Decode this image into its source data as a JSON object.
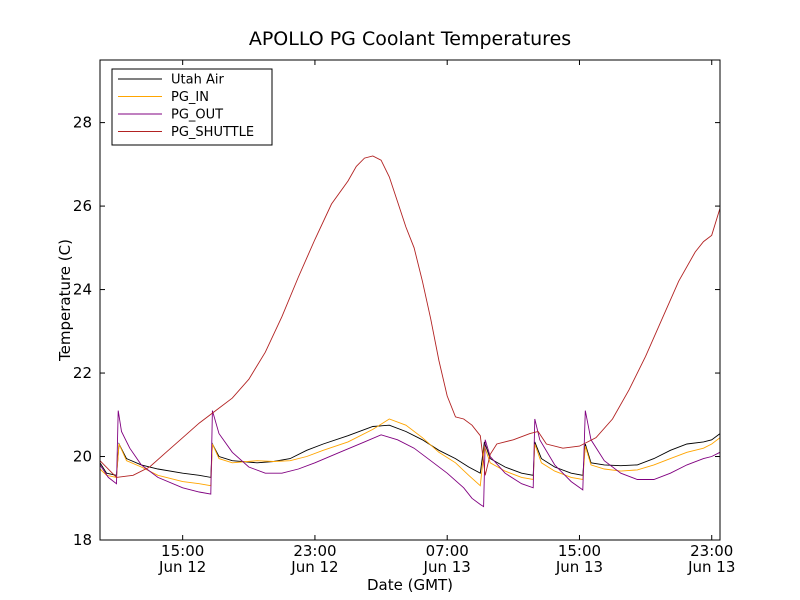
{
  "chart_data": {
    "type": "line",
    "title": "APOLLO PG Coolant Temperatures",
    "xlabel": "Date (GMT)",
    "ylabel": "Temperature (C)",
    "x_unit": "hours since Jun 12 00:00 GMT",
    "xlim": [
      10.0,
      47.5
    ],
    "ylim": [
      18,
      29.5
    ],
    "y_ticks": [
      18,
      20,
      22,
      24,
      26,
      28
    ],
    "x_ticks": [
      {
        "x": 15,
        "time": "15:00",
        "date": "Jun 12"
      },
      {
        "x": 23,
        "time": "23:00",
        "date": "Jun 12"
      },
      {
        "x": 31,
        "time": "07:00",
        "date": "Jun 13"
      },
      {
        "x": 39,
        "time": "15:00",
        "date": "Jun 13"
      },
      {
        "x": 47,
        "time": "23:00",
        "date": "Jun 13"
      }
    ],
    "legend_position": "top-left",
    "series": [
      {
        "name": "Utah Air",
        "color": "#000000",
        "points": [
          [
            10.0,
            19.85
          ],
          [
            10.4,
            19.6
          ],
          [
            11.0,
            19.55
          ],
          [
            11.15,
            20.3
          ],
          [
            11.6,
            19.95
          ],
          [
            12.5,
            19.8
          ],
          [
            13.5,
            19.7
          ],
          [
            15.0,
            19.6
          ],
          [
            16.0,
            19.55
          ],
          [
            16.7,
            19.5
          ],
          [
            16.8,
            20.3
          ],
          [
            17.2,
            20.0
          ],
          [
            18.0,
            19.9
          ],
          [
            19.5,
            19.85
          ],
          [
            20.5,
            19.88
          ],
          [
            21.5,
            19.95
          ],
          [
            22.5,
            20.15
          ],
          [
            23.5,
            20.3
          ],
          [
            25.0,
            20.5
          ],
          [
            26.5,
            20.72
          ],
          [
            27.5,
            20.75
          ],
          [
            28.5,
            20.6
          ],
          [
            29.5,
            20.4
          ],
          [
            30.5,
            20.15
          ],
          [
            31.5,
            19.95
          ],
          [
            32.3,
            19.75
          ],
          [
            33.0,
            19.6
          ],
          [
            33.25,
            20.35
          ],
          [
            33.6,
            19.95
          ],
          [
            34.5,
            19.75
          ],
          [
            35.5,
            19.6
          ],
          [
            36.2,
            19.55
          ],
          [
            36.3,
            20.35
          ],
          [
            36.7,
            19.95
          ],
          [
            37.5,
            19.75
          ],
          [
            38.5,
            19.6
          ],
          [
            39.2,
            19.55
          ],
          [
            39.35,
            20.3
          ],
          [
            39.7,
            19.85
          ],
          [
            40.5,
            19.8
          ],
          [
            41.5,
            19.78
          ],
          [
            42.5,
            19.8
          ],
          [
            43.5,
            19.95
          ],
          [
            44.5,
            20.15
          ],
          [
            45.5,
            20.3
          ],
          [
            46.5,
            20.35
          ],
          [
            47.0,
            20.4
          ],
          [
            47.5,
            20.55
          ]
        ]
      },
      {
        "name": "PG_IN",
        "color": "#ffa500",
        "points": [
          [
            10.0,
            19.7
          ],
          [
            10.4,
            19.55
          ],
          [
            11.0,
            19.5
          ],
          [
            11.15,
            20.3
          ],
          [
            11.6,
            19.9
          ],
          [
            12.5,
            19.75
          ],
          [
            13.5,
            19.55
          ],
          [
            15.0,
            19.4
          ],
          [
            16.0,
            19.35
          ],
          [
            16.7,
            19.3
          ],
          [
            16.8,
            20.3
          ],
          [
            17.2,
            19.95
          ],
          [
            18.0,
            19.85
          ],
          [
            19.5,
            19.9
          ],
          [
            20.5,
            19.88
          ],
          [
            21.5,
            19.9
          ],
          [
            22.5,
            20.0
          ],
          [
            23.5,
            20.15
          ],
          [
            25.0,
            20.35
          ],
          [
            26.5,
            20.65
          ],
          [
            27.5,
            20.9
          ],
          [
            28.5,
            20.75
          ],
          [
            29.5,
            20.45
          ],
          [
            30.5,
            20.1
          ],
          [
            31.5,
            19.85
          ],
          [
            32.3,
            19.55
          ],
          [
            33.0,
            19.3
          ],
          [
            33.25,
            20.25
          ],
          [
            33.6,
            19.85
          ],
          [
            34.5,
            19.65
          ],
          [
            35.5,
            19.5
          ],
          [
            36.2,
            19.45
          ],
          [
            36.3,
            20.3
          ],
          [
            36.7,
            19.85
          ],
          [
            37.5,
            19.65
          ],
          [
            38.5,
            19.5
          ],
          [
            39.2,
            19.45
          ],
          [
            39.35,
            20.25
          ],
          [
            39.7,
            19.8
          ],
          [
            40.5,
            19.7
          ],
          [
            41.5,
            19.65
          ],
          [
            42.5,
            19.68
          ],
          [
            43.5,
            19.8
          ],
          [
            44.5,
            19.95
          ],
          [
            45.5,
            20.1
          ],
          [
            46.5,
            20.2
          ],
          [
            47.0,
            20.3
          ],
          [
            47.5,
            20.45
          ]
        ]
      },
      {
        "name": "PG_OUT",
        "color": "#800080",
        "points": [
          [
            10.0,
            19.8
          ],
          [
            10.5,
            19.5
          ],
          [
            11.0,
            19.35
          ],
          [
            11.1,
            21.1
          ],
          [
            11.3,
            20.6
          ],
          [
            11.8,
            20.2
          ],
          [
            12.5,
            19.8
          ],
          [
            13.5,
            19.5
          ],
          [
            15.0,
            19.25
          ],
          [
            16.0,
            19.15
          ],
          [
            16.7,
            19.1
          ],
          [
            16.8,
            21.1
          ],
          [
            17.2,
            20.55
          ],
          [
            18.0,
            20.1
          ],
          [
            19.0,
            19.75
          ],
          [
            20.0,
            19.6
          ],
          [
            21.0,
            19.6
          ],
          [
            22.0,
            19.7
          ],
          [
            23.0,
            19.85
          ],
          [
            24.5,
            20.1
          ],
          [
            26.0,
            20.35
          ],
          [
            27.0,
            20.52
          ],
          [
            28.0,
            20.4
          ],
          [
            29.0,
            20.2
          ],
          [
            30.0,
            19.9
          ],
          [
            31.0,
            19.6
          ],
          [
            32.0,
            19.25
          ],
          [
            32.5,
            19.0
          ],
          [
            33.0,
            18.85
          ],
          [
            33.2,
            18.8
          ],
          [
            33.3,
            20.4
          ],
          [
            33.6,
            20.0
          ],
          [
            34.5,
            19.6
          ],
          [
            35.5,
            19.35
          ],
          [
            36.2,
            19.25
          ],
          [
            36.3,
            20.9
          ],
          [
            36.6,
            20.4
          ],
          [
            37.5,
            19.8
          ],
          [
            38.5,
            19.4
          ],
          [
            39.2,
            19.2
          ],
          [
            39.35,
            21.1
          ],
          [
            39.7,
            20.4
          ],
          [
            40.5,
            19.9
          ],
          [
            41.5,
            19.6
          ],
          [
            42.5,
            19.45
          ],
          [
            43.5,
            19.45
          ],
          [
            44.5,
            19.6
          ],
          [
            45.5,
            19.8
          ],
          [
            46.5,
            19.95
          ],
          [
            47.0,
            20.0
          ],
          [
            47.5,
            20.1
          ]
        ]
      },
      {
        "name": "PG_SHUTTLE",
        "color": "#b22222",
        "points": [
          [
            10.0,
            19.9
          ],
          [
            11.0,
            19.5
          ],
          [
            12.0,
            19.55
          ],
          [
            13.0,
            19.75
          ],
          [
            14.0,
            20.1
          ],
          [
            15.0,
            20.45
          ],
          [
            16.0,
            20.8
          ],
          [
            17.0,
            21.1
          ],
          [
            18.0,
            21.4
          ],
          [
            19.0,
            21.85
          ],
          [
            20.0,
            22.5
          ],
          [
            21.0,
            23.35
          ],
          [
            22.0,
            24.3
          ],
          [
            23.0,
            25.2
          ],
          [
            24.0,
            26.05
          ],
          [
            25.0,
            26.6
          ],
          [
            25.5,
            26.95
          ],
          [
            26.0,
            27.15
          ],
          [
            26.5,
            27.2
          ],
          [
            27.0,
            27.1
          ],
          [
            27.5,
            26.7
          ],
          [
            28.0,
            26.1
          ],
          [
            28.5,
            25.5
          ],
          [
            29.0,
            25.0
          ],
          [
            29.5,
            24.2
          ],
          [
            30.0,
            23.3
          ],
          [
            30.5,
            22.3
          ],
          [
            31.0,
            21.45
          ],
          [
            31.5,
            20.95
          ],
          [
            32.0,
            20.9
          ],
          [
            32.5,
            20.75
          ],
          [
            33.0,
            20.5
          ],
          [
            33.3,
            19.55
          ],
          [
            33.6,
            20.05
          ],
          [
            34.0,
            20.3
          ],
          [
            35.0,
            20.4
          ],
          [
            36.0,
            20.55
          ],
          [
            36.5,
            20.6
          ],
          [
            37.0,
            20.3
          ],
          [
            38.0,
            20.2
          ],
          [
            39.0,
            20.25
          ],
          [
            40.0,
            20.45
          ],
          [
            41.0,
            20.9
          ],
          [
            42.0,
            21.6
          ],
          [
            43.0,
            22.4
          ],
          [
            44.0,
            23.3
          ],
          [
            45.0,
            24.2
          ],
          [
            46.0,
            24.9
          ],
          [
            46.5,
            25.15
          ],
          [
            47.0,
            25.3
          ],
          [
            47.5,
            25.95
          ]
        ]
      }
    ]
  }
}
